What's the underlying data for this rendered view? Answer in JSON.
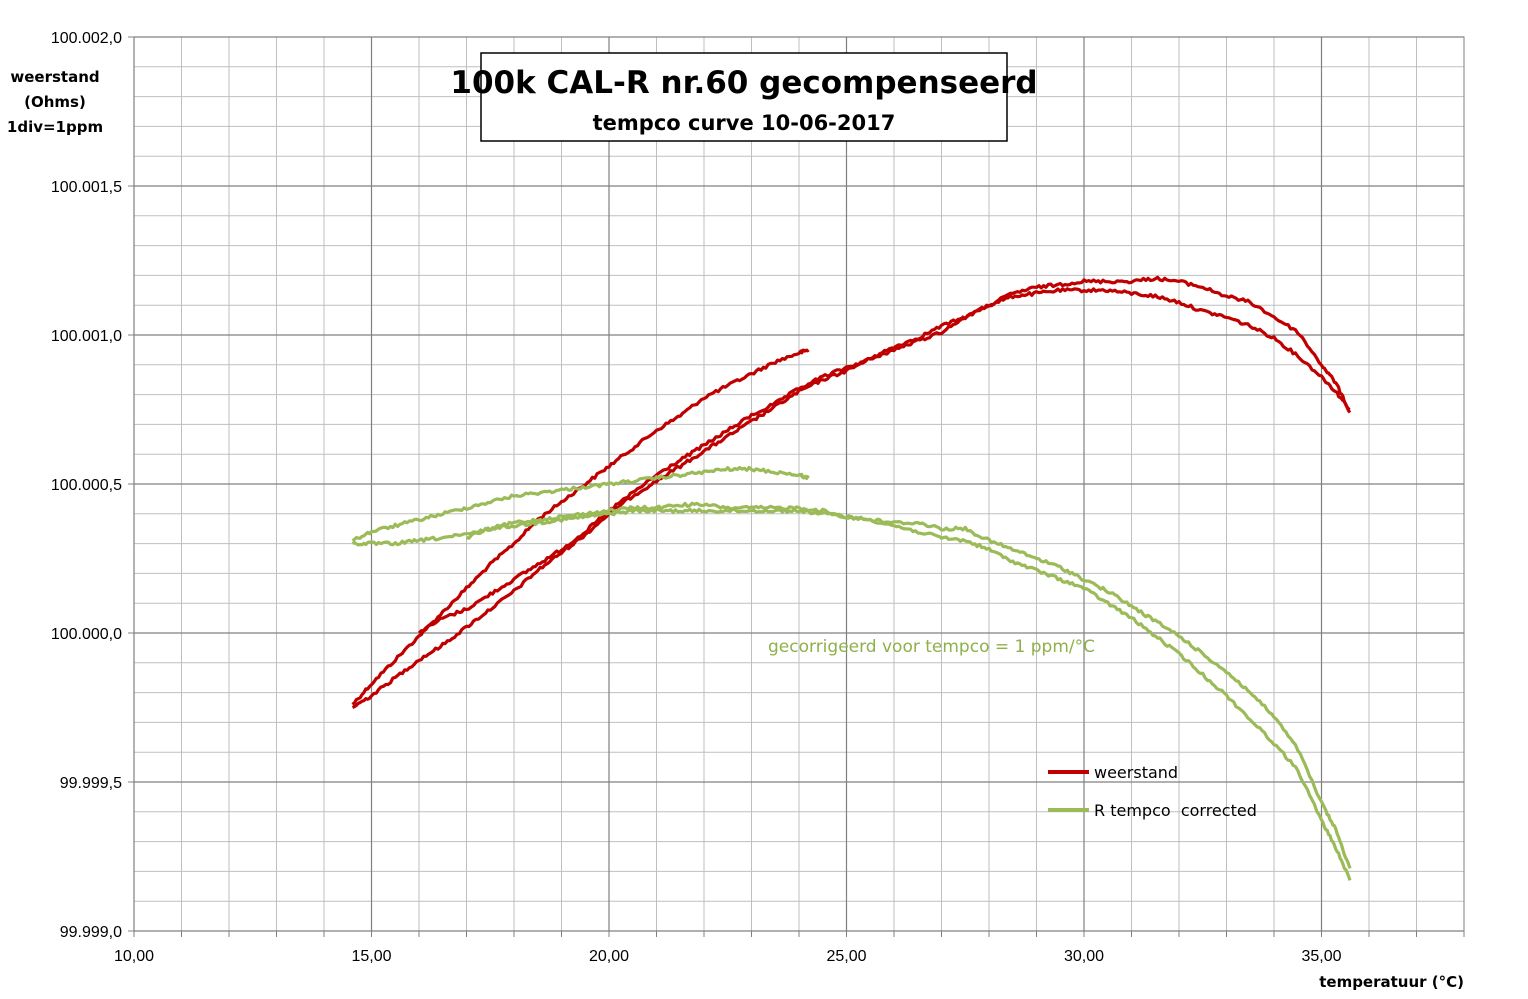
{
  "chart_data": {
    "type": "line",
    "title": "100k CAL-R nr.60 gecompenseerd",
    "subtitle": "tempco curve 10-06-2017",
    "xlabel": "temperatuur (°C)",
    "ylabel": [
      "weerstand",
      "(Ohms)",
      "1div=1ppm"
    ],
    "xlim": [
      10,
      38
    ],
    "ylim": [
      99999.0,
      100002.0
    ],
    "x_ticks": [
      10,
      15,
      20,
      25,
      30,
      35
    ],
    "x_tick_labels": [
      "10,00",
      "15,00",
      "20,00",
      "25,00",
      "30,00",
      "35,00"
    ],
    "y_ticks": [
      99999.0,
      99999.5,
      100000.0,
      100000.5,
      100001.0,
      100001.5,
      100002.0
    ],
    "y_tick_labels": [
      "99.999,0",
      "99.999,5",
      "100.000,0",
      "100.000,5",
      "100.001,0",
      "100.001,5",
      "100.002,0"
    ],
    "grid": true,
    "legend_position": "lower-right",
    "annotation": "gecorrigeerd voor tempco = 1 ppm/°C",
    "annotation_color": "#8fb04a",
    "series": [
      {
        "name": "weerstand",
        "color": "#c00000",
        "segments": [
          [
            [
              14.6,
              99999.76
            ],
            [
              15.0,
              99999.83
            ],
            [
              15.5,
              99999.91
            ],
            [
              16.0,
              99999.99
            ],
            [
              16.5,
              100000.07
            ],
            [
              17.0,
              100000.15
            ],
            [
              17.5,
              100000.23
            ],
            [
              18.0,
              100000.3
            ],
            [
              18.5,
              100000.38
            ],
            [
              19.0,
              100000.44
            ],
            [
              19.5,
              100000.5
            ],
            [
              20.0,
              100000.56
            ],
            [
              20.5,
              100000.62
            ],
            [
              21.0,
              100000.68
            ],
            [
              21.5,
              100000.73
            ],
            [
              22.0,
              100000.79
            ],
            [
              22.5,
              100000.83
            ],
            [
              23.0,
              100000.87
            ],
            [
              23.5,
              100000.91
            ],
            [
              24.0,
              100000.94
            ],
            [
              24.2,
              100000.95
            ]
          ],
          [
            [
              14.6,
              99999.75
            ],
            [
              15.0,
              99999.79
            ],
            [
              15.5,
              99999.85
            ],
            [
              16.0,
              99999.91
            ],
            [
              16.5,
              99999.96
            ],
            [
              17.0,
              100000.02
            ],
            [
              17.5,
              100000.08
            ],
            [
              18.0,
              100000.14
            ],
            [
              18.5,
              100000.21
            ],
            [
              19.0,
              100000.27
            ],
            [
              19.5,
              100000.33
            ],
            [
              20.0,
              100000.4
            ],
            [
              20.5,
              100000.46
            ],
            [
              21.0,
              100000.51
            ],
            [
              21.5,
              100000.56
            ],
            [
              22.0,
              100000.61
            ],
            [
              22.5,
              100000.66
            ],
            [
              23.0,
              100000.71
            ],
            [
              23.5,
              100000.76
            ],
            [
              24.0,
              100000.81
            ],
            [
              24.5,
              100000.85
            ],
            [
              25.0,
              100000.88
            ],
            [
              25.5,
              100000.92
            ],
            [
              26.0,
              100000.96
            ],
            [
              26.5,
              100000.99
            ],
            [
              27.0,
              100001.03
            ],
            [
              27.5,
              100001.06
            ],
            [
              28.0,
              100001.1
            ],
            [
              28.5,
              100001.13
            ],
            [
              29.0,
              100001.14
            ],
            [
              29.5,
              100001.15
            ],
            [
              30.0,
              100001.15
            ],
            [
              30.5,
              100001.15
            ],
            [
              31.0,
              100001.14
            ],
            [
              31.5,
              100001.13
            ],
            [
              32.0,
              100001.11
            ],
            [
              32.5,
              100001.08
            ],
            [
              33.0,
              100001.06
            ],
            [
              33.5,
              100001.03
            ],
            [
              34.0,
              100000.99
            ],
            [
              34.5,
              100000.93
            ],
            [
              35.0,
              100000.86
            ],
            [
              35.3,
              100000.81
            ],
            [
              35.6,
              100000.75
            ]
          ],
          [
            [
              16.0,
              100000.0
            ],
            [
              16.5,
              100000.05
            ],
            [
              17.0,
              100000.08
            ],
            [
              17.5,
              100000.13
            ],
            [
              18.0,
              100000.18
            ],
            [
              18.5,
              100000.23
            ],
            [
              19.0,
              100000.28
            ],
            [
              19.5,
              100000.34
            ],
            [
              20.0,
              100000.41
            ],
            [
              20.5,
              100000.47
            ],
            [
              21.0,
              100000.53
            ],
            [
              21.5,
              100000.58
            ],
            [
              22.0,
              100000.63
            ],
            [
              22.5,
              100000.68
            ],
            [
              23.0,
              100000.73
            ],
            [
              23.5,
              100000.77
            ],
            [
              24.0,
              100000.82
            ],
            [
              24.5,
              100000.86
            ],
            [
              25.0,
              100000.89
            ],
            [
              25.5,
              100000.92
            ],
            [
              26.0,
              100000.95
            ],
            [
              26.5,
              100000.98
            ],
            [
              27.0,
              100001.01
            ],
            [
              27.5,
              100001.06
            ],
            [
              28.0,
              100001.1
            ],
            [
              28.5,
              100001.14
            ],
            [
              29.0,
              100001.16
            ],
            [
              29.5,
              100001.17
            ],
            [
              30.0,
              100001.18
            ],
            [
              30.5,
              100001.18
            ],
            [
              31.0,
              100001.18
            ],
            [
              31.5,
              100001.19
            ],
            [
              32.0,
              100001.18
            ],
            [
              32.5,
              100001.16
            ],
            [
              33.0,
              100001.13
            ],
            [
              33.5,
              100001.11
            ],
            [
              34.0,
              100001.06
            ],
            [
              34.5,
              100001.01
            ],
            [
              35.0,
              100000.9
            ],
            [
              35.3,
              100000.84
            ],
            [
              35.6,
              100000.74
            ]
          ]
        ]
      },
      {
        "name": "R tempco  corrected",
        "color": "#9bbb59",
        "segments": [
          [
            [
              14.6,
              100000.31
            ],
            [
              15.0,
              100000.34
            ],
            [
              15.5,
              100000.36
            ],
            [
              16.0,
              100000.38
            ],
            [
              16.5,
              100000.4
            ],
            [
              17.0,
              100000.42
            ],
            [
              17.5,
              100000.44
            ],
            [
              18.0,
              100000.46
            ],
            [
              18.5,
              100000.47
            ],
            [
              19.0,
              100000.48
            ],
            [
              19.5,
              100000.49
            ],
            [
              20.0,
              100000.5
            ],
            [
              20.5,
              100000.51
            ],
            [
              21.0,
              100000.52
            ],
            [
              21.5,
              100000.53
            ],
            [
              22.0,
              100000.54
            ],
            [
              22.5,
              100000.55
            ],
            [
              23.0,
              100000.55
            ],
            [
              23.5,
              100000.54
            ],
            [
              24.0,
              100000.53
            ],
            [
              24.2,
              100000.52
            ]
          ],
          [
            [
              14.6,
              100000.3
            ],
            [
              15.0,
              100000.3
            ],
            [
              15.5,
              100000.3
            ],
            [
              16.0,
              100000.31
            ],
            [
              16.5,
              100000.32
            ],
            [
              17.0,
              100000.33
            ],
            [
              17.5,
              100000.35
            ],
            [
              18.0,
              100000.36
            ],
            [
              18.5,
              100000.37
            ],
            [
              19.0,
              100000.38
            ],
            [
              19.5,
              100000.39
            ],
            [
              20.0,
              100000.4
            ],
            [
              20.5,
              100000.41
            ],
            [
              21.0,
              100000.41
            ],
            [
              21.5,
              100000.41
            ],
            [
              22.0,
              100000.41
            ],
            [
              22.5,
              100000.41
            ],
            [
              23.0,
              100000.41
            ],
            [
              23.5,
              100000.41
            ],
            [
              24.0,
              100000.41
            ],
            [
              24.5,
              100000.4
            ],
            [
              25.0,
              100000.39
            ],
            [
              25.5,
              100000.38
            ],
            [
              26.0,
              100000.36
            ],
            [
              26.5,
              100000.34
            ],
            [
              27.0,
              100000.32
            ],
            [
              27.5,
              100000.31
            ],
            [
              28.0,
              100000.28
            ],
            [
              28.5,
              100000.24
            ],
            [
              29.0,
              100000.21
            ],
            [
              29.5,
              100000.18
            ],
            [
              30.0,
              100000.15
            ],
            [
              30.5,
              100000.1
            ],
            [
              31.0,
              100000.05
            ],
            [
              31.5,
              99999.99
            ],
            [
              32.0,
              99999.93
            ],
            [
              32.5,
              99999.86
            ],
            [
              33.0,
              99999.79
            ],
            [
              33.5,
              99999.71
            ],
            [
              34.0,
              99999.63
            ],
            [
              34.5,
              99999.54
            ],
            [
              35.0,
              99999.37
            ],
            [
              35.3,
              99999.28
            ],
            [
              35.6,
              99999.17
            ]
          ],
          [
            [
              17.0,
              100000.32
            ],
            [
              17.5,
              100000.35
            ],
            [
              18.0,
              100000.37
            ],
            [
              18.5,
              100000.38
            ],
            [
              19.0,
              100000.39
            ],
            [
              19.5,
              100000.4
            ],
            [
              20.0,
              100000.41
            ],
            [
              20.5,
              100000.42
            ],
            [
              21.0,
              100000.42
            ],
            [
              21.5,
              100000.43
            ],
            [
              22.0,
              100000.43
            ],
            [
              22.5,
              100000.42
            ],
            [
              23.0,
              100000.42
            ],
            [
              23.5,
              100000.42
            ],
            [
              24.0,
              100000.42
            ],
            [
              24.5,
              100000.41
            ],
            [
              25.0,
              100000.39
            ],
            [
              25.5,
              100000.38
            ],
            [
              26.0,
              100000.37
            ],
            [
              26.5,
              100000.37
            ],
            [
              27.0,
              100000.35
            ],
            [
              27.5,
              100000.35
            ],
            [
              28.0,
              100000.31
            ],
            [
              28.5,
              100000.28
            ],
            [
              29.0,
              100000.25
            ],
            [
              29.5,
              100000.22
            ],
            [
              30.0,
              100000.18
            ],
            [
              30.5,
              100000.14
            ],
            [
              31.0,
              100000.09
            ],
            [
              31.5,
              100000.04
            ],
            [
              32.0,
              99999.99
            ],
            [
              32.5,
              99999.93
            ],
            [
              33.0,
              99999.87
            ],
            [
              33.5,
              99999.8
            ],
            [
              34.0,
              99999.72
            ],
            [
              34.5,
              99999.61
            ],
            [
              35.0,
              99999.43
            ],
            [
              35.3,
              99999.34
            ],
            [
              35.6,
              99999.21
            ]
          ]
        ]
      }
    ]
  }
}
